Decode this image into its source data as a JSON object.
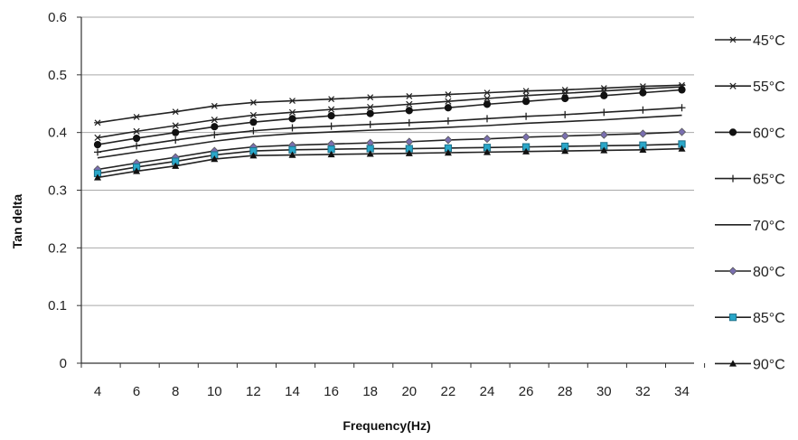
{
  "chart_data": {
    "type": "line",
    "title": "",
    "xlabel": "Frequency(Hz)",
    "ylabel": "Tan delta",
    "x": [
      4,
      6,
      8,
      10,
      12,
      14,
      16,
      18,
      20,
      22,
      24,
      26,
      28,
      30,
      32,
      34
    ],
    "x_tick_labels": [
      "4",
      "6",
      "8",
      "10",
      "12",
      "14",
      "16",
      "18",
      "20",
      "22",
      "24",
      "26",
      "28",
      "30",
      "32",
      "34"
    ],
    "ylim": [
      0,
      0.6
    ],
    "y_tick_labels": [
      "0",
      "0.1",
      "0.2",
      "0.3",
      "0.4",
      "0.5",
      "0.6"
    ],
    "grid": "horizontal",
    "legend_position": "right",
    "series": [
      {
        "name": "45°C",
        "marker": "star",
        "color": "#222222",
        "values": [
          0.417,
          0.427,
          0.436,
          0.446,
          0.452,
          0.455,
          0.458,
          0.461,
          0.463,
          0.466,
          0.469,
          0.472,
          0.474,
          0.477,
          0.48,
          0.482
        ]
      },
      {
        "name": "55°C",
        "marker": "x",
        "color": "#222222",
        "values": [
          0.391,
          0.402,
          0.412,
          0.422,
          0.43,
          0.435,
          0.44,
          0.444,
          0.449,
          0.454,
          0.459,
          0.464,
          0.468,
          0.472,
          0.476,
          0.479
        ]
      },
      {
        "name": "60°C",
        "marker": "circle",
        "color": "#111111",
        "values": [
          0.379,
          0.39,
          0.4,
          0.41,
          0.418,
          0.424,
          0.429,
          0.433,
          0.438,
          0.443,
          0.449,
          0.454,
          0.459,
          0.464,
          0.469,
          0.474
        ]
      },
      {
        "name": "65°C",
        "marker": "plus",
        "color": "#222222",
        "values": [
          0.366,
          0.377,
          0.387,
          0.396,
          0.403,
          0.408,
          0.411,
          0.414,
          0.417,
          0.42,
          0.424,
          0.428,
          0.431,
          0.435,
          0.439,
          0.443
        ]
      },
      {
        "name": "70°C",
        "marker": "none",
        "color": "#222222",
        "values": [
          0.356,
          0.366,
          0.375,
          0.385,
          0.393,
          0.398,
          0.401,
          0.404,
          0.406,
          0.409,
          0.412,
          0.416,
          0.419,
          0.422,
          0.426,
          0.43
        ]
      },
      {
        "name": "80°C",
        "marker": "diamond",
        "color": "#7a6fb0",
        "values": [
          0.336,
          0.347,
          0.357,
          0.368,
          0.375,
          0.378,
          0.38,
          0.382,
          0.384,
          0.387,
          0.389,
          0.392,
          0.394,
          0.396,
          0.398,
          0.401
        ]
      },
      {
        "name": "85°C",
        "marker": "square",
        "color": "#2aa7c9",
        "values": [
          0.329,
          0.34,
          0.35,
          0.361,
          0.368,
          0.37,
          0.371,
          0.372,
          0.372,
          0.373,
          0.374,
          0.375,
          0.376,
          0.377,
          0.378,
          0.38
        ]
      },
      {
        "name": "90°C",
        "marker": "triangle",
        "color": "#111111",
        "values": [
          0.322,
          0.333,
          0.342,
          0.354,
          0.36,
          0.361,
          0.362,
          0.363,
          0.364,
          0.365,
          0.366,
          0.367,
          0.368,
          0.369,
          0.37,
          0.372
        ]
      }
    ]
  }
}
